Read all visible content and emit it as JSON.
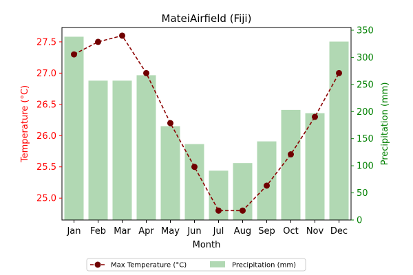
{
  "chart_data": {
    "type": "bar+line",
    "title": "MateiAirfield (Fiji)",
    "xlabel": "Month",
    "categories": [
      "Jan",
      "Feb",
      "Mar",
      "Apr",
      "May",
      "Jun",
      "Jul",
      "Aug",
      "Sep",
      "Oct",
      "Nov",
      "Dec"
    ],
    "y_left": {
      "label": "Temperature (°C)",
      "ylim": [
        24.65,
        27.73
      ],
      "ticks": [
        "25.0",
        "25.5",
        "26.0",
        "26.5",
        "27.0",
        "27.5"
      ],
      "color": "#ff0000"
    },
    "y_right": {
      "label": "Precipitation (mm)",
      "ylim": [
        0,
        355
      ],
      "ticks": [
        "0",
        "50",
        "100",
        "150",
        "200",
        "250",
        "300",
        "350"
      ],
      "color": "#008000"
    },
    "series": [
      {
        "name": "Max Temperature (°C)",
        "kind": "line",
        "axis": "left",
        "color": "#8b0000",
        "values": [
          27.3,
          27.5,
          27.6,
          27.0,
          26.2,
          25.5,
          24.8,
          24.8,
          25.2,
          25.7,
          26.3,
          27.0
        ]
      },
      {
        "name": "Precipitation (mm)",
        "kind": "bar",
        "axis": "right",
        "color": "#b1d8b3",
        "values": [
          338,
          257,
          257,
          267,
          173,
          140,
          91,
          105,
          145,
          203,
          197,
          329
        ]
      }
    ],
    "legend": "bottom-center",
    "grid": false
  }
}
